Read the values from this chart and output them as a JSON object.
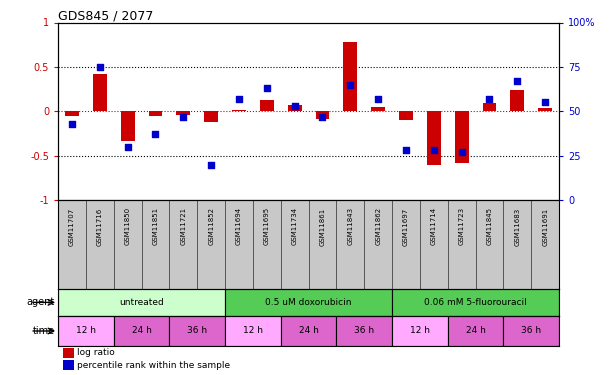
{
  "title": "GDS845 / 2077",
  "samples": [
    "GSM11707",
    "GSM11716",
    "GSM11850",
    "GSM11851",
    "GSM11721",
    "GSM11852",
    "GSM11694",
    "GSM11695",
    "GSM11734",
    "GSM11861",
    "GSM11843",
    "GSM11862",
    "GSM11697",
    "GSM11714",
    "GSM11723",
    "GSM11845",
    "GSM11683",
    "GSM11691"
  ],
  "log_ratio": [
    -0.05,
    0.42,
    -0.33,
    -0.05,
    -0.04,
    -0.12,
    0.02,
    0.13,
    0.07,
    -0.09,
    0.78,
    0.05,
    -0.1,
    -0.6,
    -0.58,
    0.09,
    0.24,
    0.04
  ],
  "percentile": [
    43,
    75,
    30,
    37,
    47,
    20,
    57,
    63,
    53,
    47,
    65,
    57,
    28,
    28,
    27,
    57,
    67,
    55
  ],
  "ylim_left": [
    -1,
    1
  ],
  "ylim_right": [
    0,
    100
  ],
  "yticks_left": [
    -1,
    -0.5,
    0,
    0.5,
    1
  ],
  "yticks_right": [
    0,
    25,
    50,
    75,
    100
  ],
  "bar_color": "#cc0000",
  "dot_color": "#0000cc",
  "agent_data": [
    [
      0,
      6,
      "untreated",
      "#ccffcc"
    ],
    [
      6,
      12,
      "0.5 uM doxorubicin",
      "#55cc55"
    ],
    [
      12,
      18,
      "0.06 mM 5-fluorouracil",
      "#55cc55"
    ]
  ],
  "time_data": [
    [
      0,
      2,
      "12 h",
      "#ffaaff"
    ],
    [
      2,
      4,
      "24 h",
      "#dd66cc"
    ],
    [
      4,
      6,
      "36 h",
      "#dd66cc"
    ],
    [
      6,
      8,
      "12 h",
      "#ffaaff"
    ],
    [
      8,
      10,
      "24 h",
      "#dd66cc"
    ],
    [
      10,
      12,
      "36 h",
      "#dd66cc"
    ],
    [
      12,
      14,
      "12 h",
      "#ffaaff"
    ],
    [
      14,
      16,
      "24 h",
      "#dd66cc"
    ],
    [
      16,
      18,
      "36 h",
      "#dd66cc"
    ]
  ],
  "legend_bar_color": "#cc0000",
  "legend_dot_color": "#0000cc",
  "legend_bar_label": "log ratio",
  "legend_dot_label": "percentile rank within the sample",
  "bg_color": "#ffffff",
  "tick_color_left": "#cc0000",
  "tick_color_right": "#0000cc",
  "sample_bg": "#c8c8c8"
}
